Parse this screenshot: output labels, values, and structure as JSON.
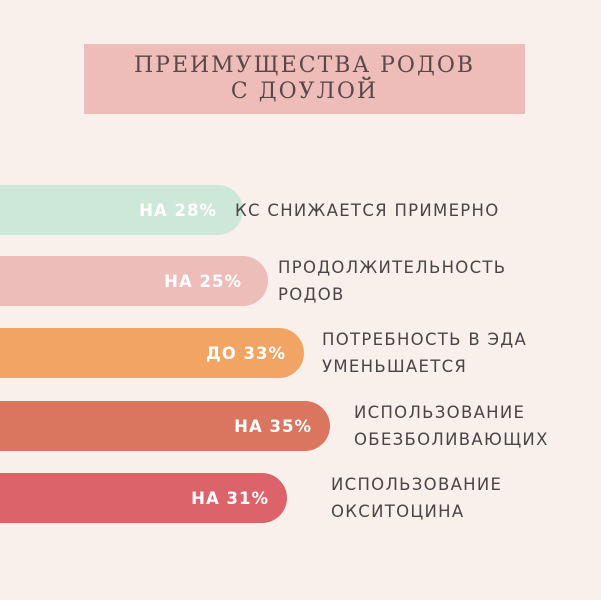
{
  "title": {
    "line1": "ПРЕИМУЩЕСТВА РОДОВ",
    "line2": "С ДОУЛОЙ"
  },
  "colors": {
    "background": "#f9f0ec",
    "title_box": "#efbdb9",
    "bar_1": "#cde7d9",
    "bar_2": "#ecbdb9",
    "bar_3": "#f1a463",
    "bar_4": "#da755f",
    "bar_5": "#dd636b"
  },
  "items": [
    {
      "value": "НА 28%",
      "lines": [
        "КС СНИЖАЕТСЯ ПРИМЕРНО"
      ]
    },
    {
      "value": "НА 25%",
      "lines": [
        "ПРОДОЛЖИТЕЛЬНОСТЬ",
        "РОДОВ"
      ]
    },
    {
      "value": "ДО 33%",
      "lines": [
        "ПОТРЕБНОСТЬ В ЭДА",
        "УМЕНЬШАЕТСЯ"
      ]
    },
    {
      "value": "НА 35%",
      "lines": [
        "ИСПОЛЬЗОВАНИЕ",
        "ОБЕЗБОЛИВАЮЩИХ"
      ]
    },
    {
      "value": "НА 31%",
      "lines": [
        "ИСПОЛЬЗОВАНИЕ",
        "ОКСИТОЦИНА"
      ]
    }
  ]
}
